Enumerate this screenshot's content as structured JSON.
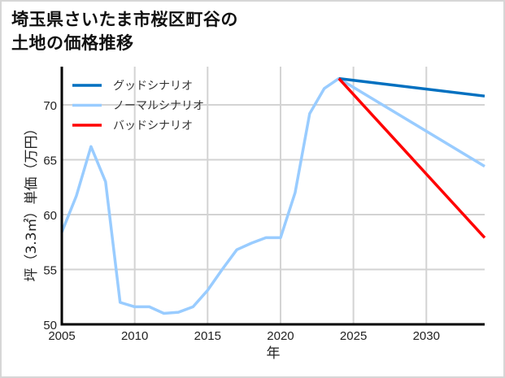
{
  "title_line1": "埼玉県さいたま市桜区町谷の",
  "title_line2": "土地の価格推移",
  "chart_data": {
    "type": "line",
    "title": "埼玉県さいたま市桜区町谷の土地の価格推移",
    "xlabel": "年",
    "ylabel": "坪（3.3㎡）単価（万円）",
    "xlim": [
      2005,
      2034
    ],
    "ylim": [
      50,
      73.5
    ],
    "xticks": [
      2005,
      2010,
      2015,
      2020,
      2025,
      2030
    ],
    "yticks": [
      50,
      55,
      60,
      65,
      70
    ],
    "grid": true,
    "legend_position": "upper left",
    "series": [
      {
        "name": "ノーマルシナリオ",
        "color": "#99ccff",
        "x": [
          2005,
          2006,
          2007,
          2008,
          2009,
          2010,
          2011,
          2012,
          2013,
          2014,
          2015,
          2016,
          2017,
          2018,
          2019,
          2020,
          2021,
          2022,
          2023,
          2024,
          2034
        ],
        "values": [
          58.4,
          61.7,
          66.2,
          63.0,
          52.0,
          51.6,
          51.6,
          51.0,
          51.1,
          51.6,
          53.1,
          55.0,
          56.8,
          57.4,
          57.9,
          57.9,
          62.0,
          69.2,
          71.5,
          72.4,
          64.4
        ]
      },
      {
        "name": "グッドシナリオ",
        "color": "#0070c0",
        "x": [
          2024,
          2034
        ],
        "values": [
          72.4,
          70.8
        ]
      },
      {
        "name": "バッドシナリオ",
        "color": "#ff0000",
        "x": [
          2024,
          2034
        ],
        "values": [
          72.4,
          57.9
        ]
      }
    ],
    "legend": [
      "グッドシナリオ",
      "ノーマルシナリオ",
      "バッドシナリオ"
    ]
  }
}
